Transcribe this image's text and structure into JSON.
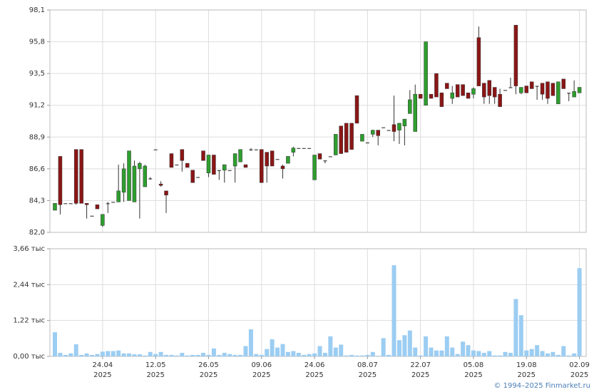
{
  "chart_data": [
    {
      "type": "candlestick",
      "categories": [
        null,
        null,
        null,
        null,
        null,
        null,
        null,
        null,
        null,
        "24.04\n2025",
        null,
        null,
        null,
        null,
        null,
        null,
        null,
        null,
        null,
        "12.05\n2025",
        null,
        null,
        null,
        null,
        null,
        null,
        null,
        null,
        null,
        "26.05\n2025",
        null,
        null,
        null,
        null,
        null,
        null,
        null,
        null,
        null,
        "09.06\n2025",
        null,
        null,
        null,
        null,
        null,
        null,
        null,
        null,
        null,
        "24.06\n2025",
        null,
        null,
        null,
        null,
        null,
        null,
        null,
        null,
        null,
        "08.07\n2025",
        null,
        null,
        null,
        null,
        null,
        null,
        null,
        null,
        null,
        "22.07\n2025",
        null,
        null,
        null,
        null,
        null,
        null,
        null,
        null,
        null,
        "05.08\n2025",
        null,
        null,
        null,
        null,
        null,
        null,
        null,
        null,
        null,
        "19.08\n2025",
        null,
        null,
        null,
        null,
        null,
        null,
        null,
        null,
        null,
        "02.09\n2025"
      ],
      "open": [
        83.6,
        87.5,
        84.1,
        84.1,
        88.0,
        88.0,
        84.1,
        83.2,
        84.0,
        82.5,
        84.1,
        84.2,
        84.2,
        84.9,
        84.3,
        84.2,
        86.6,
        85.3,
        85.9,
        88.0,
        85.5,
        85.0,
        87.7,
        86.9,
        88.0,
        87.0,
        86.5,
        86.0,
        87.9,
        86.3,
        87.6,
        86.5,
        86.5,
        86.5,
        86.8,
        87.1,
        86.9,
        88.0,
        88.0,
        88.0,
        87.8,
        87.9,
        87.3,
        86.8,
        87.0,
        87.8,
        88.1,
        88.1,
        88.1,
        85.8,
        87.7,
        87.2,
        87.5,
        87.6,
        89.7,
        89.9,
        89.9,
        91.9,
        88.6,
        88.5,
        89.1,
        89.4,
        89.6,
        89.4,
        89.8,
        89.4,
        89.7,
        90.6,
        89.3,
        92.0,
        91.2,
        92.0,
        93.5,
        92.1,
        92.8,
        91.7,
        92.7,
        92.7,
        92.1,
        92.0,
        96.1,
        92.8,
        93.0,
        92.5,
        92.0,
        92.3,
        92.5,
        97.0,
        92.1,
        92.6,
        92.9,
        92.6,
        92.8,
        92.9,
        92.8,
        91.3,
        93.1,
        92.1,
        91.8,
        92.1
      ],
      "high": [
        84.1,
        87.5,
        84.1,
        84.1,
        88.0,
        88.0,
        84.1,
        83.2,
        84.0,
        83.3,
        84.2,
        84.2,
        86.9,
        87.0,
        87.9,
        87.2,
        87.1,
        86.9,
        86.0,
        88.0,
        85.7,
        85.0,
        87.7,
        86.9,
        88.0,
        87.0,
        86.5,
        86.0,
        87.9,
        87.6,
        87.6,
        86.5,
        86.9,
        86.5,
        87.7,
        88.0,
        86.9,
        88.1,
        88.0,
        88.0,
        87.8,
        87.9,
        87.3,
        86.9,
        87.5,
        88.2,
        88.1,
        88.1,
        88.1,
        87.6,
        87.7,
        87.2,
        87.5,
        89.1,
        89.7,
        89.9,
        89.9,
        91.9,
        89.1,
        88.5,
        89.4,
        89.4,
        89.6,
        89.4,
        91.9,
        89.9,
        90.2,
        92.3,
        92.7,
        92.0,
        95.8,
        92.0,
        93.5,
        92.1,
        92.8,
        92.6,
        92.7,
        92.7,
        92.1,
        92.5,
        96.9,
        92.8,
        93.0,
        92.5,
        92.4,
        92.3,
        93.2,
        97.0,
        92.5,
        92.6,
        92.9,
        92.6,
        92.8,
        92.9,
        92.8,
        92.9,
        93.1,
        92.1,
        93.0,
        92.5
      ],
      "low": [
        83.6,
        83.3,
        84.1,
        84.1,
        84.0,
        84.1,
        83.0,
        83.2,
        83.7,
        82.4,
        83.4,
        84.2,
        84.2,
        84.2,
        84.3,
        84.2,
        83.0,
        85.3,
        85.8,
        88.0,
        85.3,
        83.4,
        86.7,
        86.9,
        86.4,
        86.7,
        85.6,
        86.0,
        87.2,
        86.0,
        86.2,
        85.8,
        85.6,
        86.5,
        85.6,
        87.1,
        86.7,
        87.9,
        88.0,
        85.6,
        85.6,
        86.8,
        87.3,
        85.9,
        87.0,
        87.5,
        88.1,
        88.1,
        88.1,
        85.8,
        87.3,
        87.0,
        87.5,
        87.6,
        87.7,
        87.8,
        88.0,
        89.9,
        88.6,
        88.5,
        88.9,
        88.3,
        89.6,
        89.4,
        88.6,
        88.4,
        88.3,
        90.6,
        89.3,
        91.7,
        91.2,
        91.7,
        91.8,
        91.1,
        92.4,
        91.3,
        91.8,
        91.9,
        91.7,
        91.7,
        92.6,
        91.3,
        91.3,
        91.3,
        91.1,
        92.3,
        92.5,
        92.0,
        92.0,
        92.1,
        92.4,
        91.6,
        91.6,
        91.3,
        91.9,
        91.3,
        92.4,
        91.5,
        91.8,
        92.1
      ],
      "close": [
        84.1,
        84.0,
        84.1,
        84.1,
        84.1,
        84.1,
        84.0,
        83.2,
        83.7,
        83.3,
        84.1,
        84.2,
        85.0,
        86.6,
        87.9,
        86.8,
        87.0,
        86.8,
        85.9,
        88.0,
        85.4,
        84.7,
        86.7,
        86.9,
        87.2,
        86.7,
        85.6,
        86.0,
        87.2,
        87.6,
        86.2,
        86.5,
        86.9,
        86.5,
        87.7,
        88.0,
        86.7,
        88.0,
        88.0,
        85.6,
        86.8,
        86.8,
        87.3,
        86.6,
        87.5,
        88.1,
        88.1,
        88.1,
        88.1,
        87.6,
        87.3,
        87.2,
        87.5,
        89.1,
        87.7,
        87.8,
        88.0,
        89.9,
        89.1,
        88.5,
        89.4,
        89.0,
        89.6,
        89.4,
        89.3,
        89.9,
        90.2,
        91.6,
        92.0,
        91.7,
        95.8,
        91.7,
        91.8,
        91.1,
        92.4,
        92.1,
        91.8,
        91.9,
        91.7,
        92.4,
        92.6,
        91.8,
        91.9,
        91.8,
        91.1,
        92.3,
        92.5,
        92.6,
        92.5,
        92.1,
        92.4,
        92.6,
        92.0,
        91.7,
        91.9,
        92.9,
        92.4,
        92.1,
        92.2,
        92.5
      ],
      "up_color": "#2e9e2e",
      "down_color": "#8b1616",
      "ylim": [
        82.0,
        98.1
      ],
      "yticks": [
        {
          "value": 82.0,
          "label": "82,0"
        },
        {
          "value": 84.3,
          "label": "84,3"
        },
        {
          "value": 86.6,
          "label": "86,6"
        },
        {
          "value": 88.9,
          "label": "88,9"
        },
        {
          "value": 91.2,
          "label": "91,2"
        },
        {
          "value": 93.5,
          "label": "93,5"
        },
        {
          "value": 95.8,
          "label": "95,8"
        },
        {
          "value": 98.1,
          "label": "98,1"
        }
      ],
      "grid": true
    },
    {
      "type": "bar",
      "values": [
        0.82,
        0.12,
        0.05,
        0.1,
        0.41,
        0.05,
        0.1,
        0.05,
        0.08,
        0.16,
        0.18,
        0.18,
        0.2,
        0.1,
        0.1,
        0.07,
        0.07,
        0.03,
        0.15,
        0.08,
        0.15,
        0.05,
        0.05,
        0.03,
        0.12,
        0.03,
        0.05,
        0.05,
        0.12,
        0.05,
        0.27,
        0.05,
        0.12,
        0.08,
        0.05,
        0.05,
        0.35,
        0.92,
        0.08,
        0.05,
        0.25,
        0.58,
        0.3,
        0.42,
        0.15,
        0.18,
        0.12,
        0.05,
        0.08,
        0.1,
        0.35,
        0.12,
        0.68,
        0.3,
        0.4,
        0.03,
        0.05,
        0.03,
        0.03,
        0.05,
        0.15,
        0.02,
        0.62,
        0.05,
        3.1,
        0.55,
        0.72,
        0.88,
        0.3,
        0.03,
        0.68,
        0.3,
        0.2,
        0.2,
        0.68,
        0.3,
        0.08,
        0.5,
        0.38,
        0.2,
        0.18,
        0.12,
        0.18,
        0.03,
        0.03,
        0.15,
        0.12,
        1.95,
        1.4,
        0.2,
        0.25,
        0.38,
        0.18,
        0.1,
        0.15,
        0.05,
        0.35,
        0.03,
        0.1,
        3.0
      ],
      "color": "#9ccdf2",
      "ylim": [
        0,
        3.66
      ],
      "yticks": [
        {
          "value": 0,
          "label": "0,00 тыс"
        },
        {
          "value": 1.22,
          "label": "1,22 тыс"
        },
        {
          "value": 2.44,
          "label": "2,44 тыс"
        },
        {
          "value": 3.66,
          "label": "3,66 тыс"
        }
      ],
      "grid": true
    }
  ],
  "footer": "© 1994–2025 Finmarket.ru"
}
